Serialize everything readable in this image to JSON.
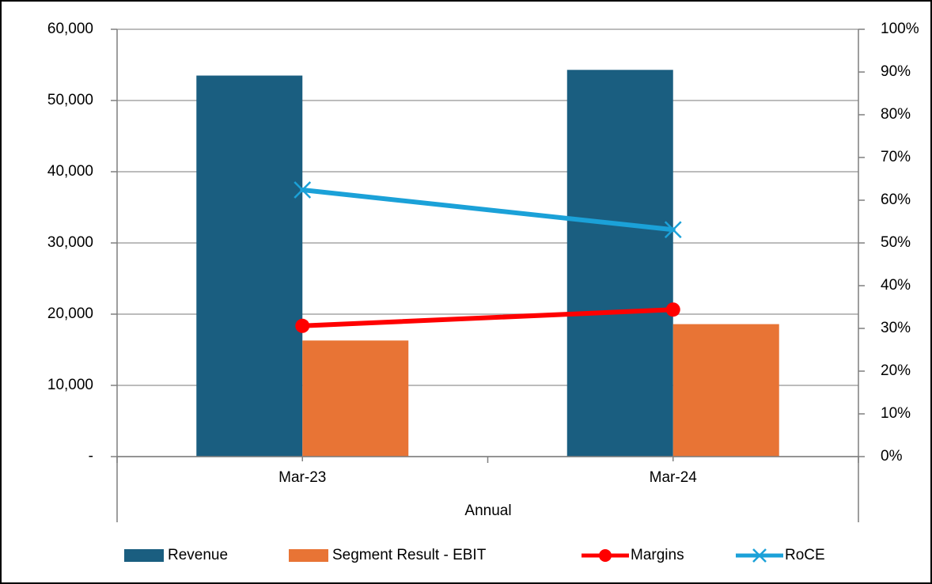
{
  "chart_data": {
    "type": "bar",
    "categories": [
      "Mar-23",
      "Mar-24"
    ],
    "x_label": "Annual",
    "series": [
      {
        "name": "Revenue",
        "color": "#1a5e80",
        "type": "bar",
        "values": [
          53500,
          54300
        ]
      },
      {
        "name": "Segment Result - EBIT",
        "color": "#e87435",
        "type": "bar",
        "values": [
          16300,
          18600
        ]
      },
      {
        "name": "Margins",
        "color": "#ff0000",
        "type": "line",
        "marker": "circle",
        "axis": "y2",
        "values": [
          30.6,
          34.4
        ]
      },
      {
        "name": "RoCE",
        "color": "#1ba1d8",
        "type": "line",
        "marker": "x",
        "axis": "y2",
        "values": [
          62.4,
          53.1
        ]
      }
    ],
    "ylim": [
      0,
      60000
    ],
    "yticks": [
      {
        "value": 0,
        "label": "-"
      },
      {
        "value": 10000,
        "label": "10,000"
      },
      {
        "value": 20000,
        "label": "20,000"
      },
      {
        "value": 30000,
        "label": "30,000"
      },
      {
        "value": 40000,
        "label": "40,000"
      },
      {
        "value": 50000,
        "label": "50,000"
      },
      {
        "value": 60000,
        "label": "60,000"
      }
    ],
    "y2lim": [
      0,
      100
    ],
    "y2ticks": [
      {
        "value": 0,
        "label": "0%"
      },
      {
        "value": 10,
        "label": "10%"
      },
      {
        "value": 20,
        "label": "20%"
      },
      {
        "value": 30,
        "label": "30%"
      },
      {
        "value": 40,
        "label": "40%"
      },
      {
        "value": 50,
        "label": "50%"
      },
      {
        "value": 60,
        "label": "60%"
      },
      {
        "value": 70,
        "label": "70%"
      },
      {
        "value": 80,
        "label": "80%"
      },
      {
        "value": 90,
        "label": "90%"
      },
      {
        "value": 100,
        "label": "100%"
      }
    ],
    "grid": true,
    "legend": "bottom"
  }
}
